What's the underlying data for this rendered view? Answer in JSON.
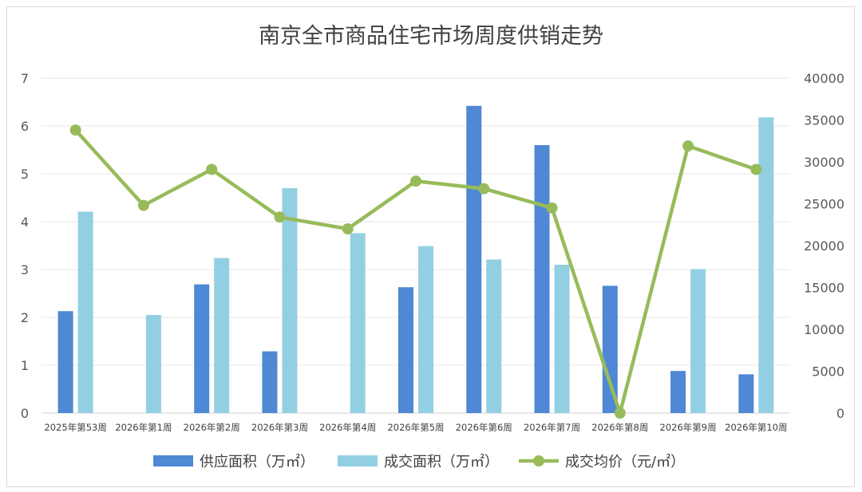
{
  "chart_data": {
    "type": "bar",
    "title": "南京全市商品住宅市场周度供销走势",
    "categories": [
      "2025年第53周",
      "2026年第1周",
      "2026年第2周",
      "2026年第3周",
      "2026年第4周",
      "2026年第5周",
      "2026年第6周",
      "2026年第7周",
      "2026年第8周",
      "2026年第9周",
      "2026年第10周"
    ],
    "y_left": {
      "range": [
        0,
        7
      ],
      "ticks": [
        "0",
        "1",
        "2",
        "3",
        "4",
        "5",
        "6",
        "7"
      ]
    },
    "y_right": {
      "range": [
        0,
        40000
      ],
      "ticks": [
        "0",
        "5000",
        "10000",
        "15000",
        "20000",
        "25000",
        "30000",
        "35000",
        "40000"
      ]
    },
    "grid": true,
    "legend_position": "bottom",
    "series": [
      {
        "name": "供应面积（万㎡）",
        "type": "bar",
        "axis": "left",
        "color": "#4f88d4",
        "values": [
          2.13,
          0,
          2.69,
          1.29,
          0,
          2.63,
          6.42,
          5.6,
          2.66,
          0.88,
          0.81
        ]
      },
      {
        "name": "成交面积（万㎡）",
        "type": "bar",
        "axis": "left",
        "color": "#93cfe3",
        "values": [
          4.21,
          2.05,
          3.24,
          4.7,
          3.76,
          3.49,
          3.21,
          3.1,
          0,
          3.01,
          6.18
        ]
      },
      {
        "name": "成交均价（元/㎡）",
        "type": "line",
        "axis": "right",
        "color": "#98bb5a",
        "values": [
          33800,
          24800,
          29100,
          23400,
          22000,
          27700,
          26800,
          24500,
          0,
          31900,
          29100
        ]
      }
    ]
  }
}
